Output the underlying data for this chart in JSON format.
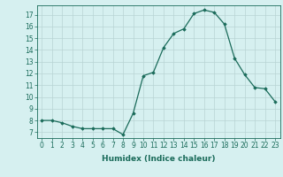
{
  "x": [
    0,
    1,
    2,
    3,
    4,
    5,
    6,
    7,
    8,
    9,
    10,
    11,
    12,
    13,
    14,
    15,
    16,
    17,
    18,
    19,
    20,
    21,
    22,
    23
  ],
  "y": [
    8.0,
    8.0,
    7.8,
    7.5,
    7.3,
    7.3,
    7.3,
    7.3,
    6.8,
    8.6,
    11.8,
    12.1,
    14.2,
    15.4,
    15.8,
    17.1,
    17.4,
    17.2,
    16.2,
    13.3,
    11.9,
    10.8,
    10.7,
    9.6
  ],
  "xlim": [
    -0.5,
    23.5
  ],
  "ylim": [
    6.5,
    17.8
  ],
  "yticks": [
    7,
    8,
    9,
    10,
    11,
    12,
    13,
    14,
    15,
    16,
    17
  ],
  "xticks": [
    0,
    1,
    2,
    3,
    4,
    5,
    6,
    7,
    8,
    9,
    10,
    11,
    12,
    13,
    14,
    15,
    16,
    17,
    18,
    19,
    20,
    21,
    22,
    23
  ],
  "xlabel": "Humidex (Indice chaleur)",
  "line_color": "#1a6b5a",
  "marker": "D",
  "marker_size": 1.8,
  "bg_color": "#d6f0f0",
  "grid_color": "#b8d4d4",
  "tick_label_fontsize": 5.5,
  "xlabel_fontsize": 6.5
}
